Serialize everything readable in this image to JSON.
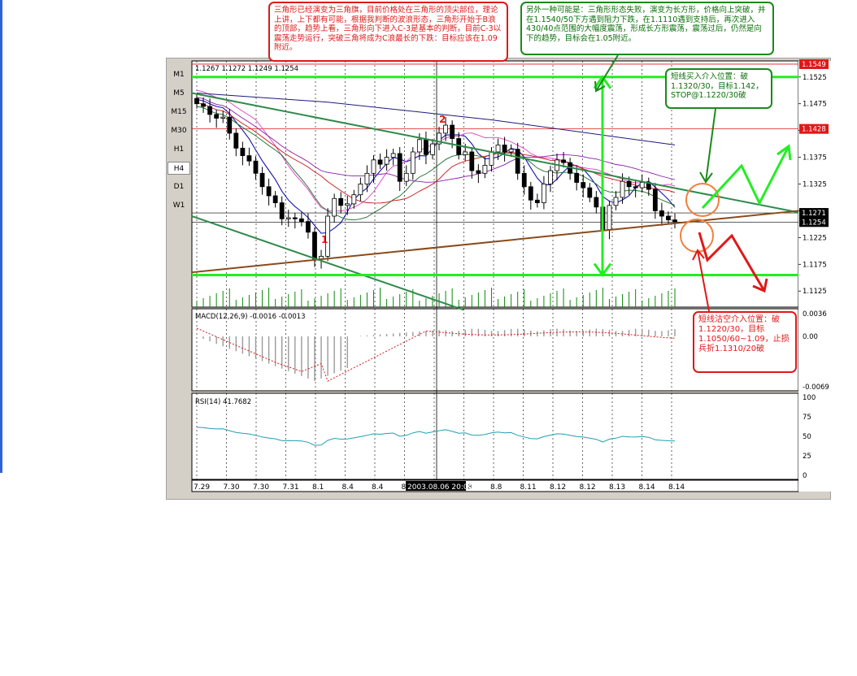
{
  "timeframes": [
    "M1",
    "M5",
    "M15",
    "M30",
    "H1",
    "H4",
    "D1",
    "W1"
  ],
  "active_timeframe": "H4",
  "main_panel": {
    "ohlc_label": "1.1267 1.1272 1.1249 1.1254",
    "price_ticks": [
      "1.1525",
      "1.1475",
      "1.1425",
      "1.1375",
      "1.1325",
      "1.1275",
      "1.1225",
      "1.1175",
      "1.1125"
    ],
    "price_tick_values": [
      1.1525,
      1.1475,
      1.1425,
      1.1375,
      1.1325,
      1.1275,
      1.1225,
      1.1175,
      1.1125
    ],
    "price_range": [
      1.1095,
      1.1555
    ],
    "price_tags": [
      {
        "label": "1.1549",
        "value": 1.1549,
        "color": "#e01818"
      },
      {
        "label": "1.1428",
        "value": 1.1428,
        "color": "#e01818"
      },
      {
        "label": "1.1271",
        "value": 1.1271,
        "color": "#000000"
      },
      {
        "label": "1.1254",
        "value": 1.1254,
        "color": "#000000"
      }
    ],
    "wave_labels": [
      {
        "text": "1",
        "index": 19,
        "price": 1.1215,
        "color": "#e01818"
      },
      {
        "text": "2",
        "index": 37,
        "price": 1.144,
        "color": "#e01818"
      }
    ]
  },
  "macd_panel": {
    "label": "MACD(12,26,9)  -0.0016 -0.0013",
    "ticks": [
      "0.0036",
      "0.00",
      "-0.0069"
    ]
  },
  "rsi_panel": {
    "label": "RSI(14)  41.7682",
    "ticks": [
      "100",
      "75",
      "50",
      "25",
      "0"
    ],
    "tick_values": [
      100,
      75,
      50,
      25,
      0
    ]
  },
  "date_labels": [
    "7.29",
    "7.30",
    "7.30",
    "7.31",
    "8.1",
    "8.4",
    "8.4",
    "8.5",
    "8",
    "8.8",
    "8.8",
    "8.11",
    "8.12",
    "8.12",
    "8.13",
    "8.14",
    "8.14"
  ],
  "date_highlight": "2003.08.06 20:00",
  "callouts": {
    "top_red": "三角形已经演变为三角旗，目前价格处在三角形的顶尖部位，理论上讲，上下都有可能，根据我判断的波浪形态，三角形开始于B浪的顶部，趋势上看，三角形向下进入C-3是基本的判断，目前C-3以震荡走势运行，突破三角将成为C浪最长的下跌：目标应该在1.09附近。",
    "top_green": "另外一种可能是：三角形形态失败，演变为长方形，价格向上突破，并在1.1540/50下方遇到阻力下跌，在1.1110遇到支持后，再次进入430/40点范围的大幅度震荡，形成长方形震荡，震荡过后，仍然是向下的趋势，目标会在1.05附近。",
    "buy_box": "短线买入介入位置：破1.1320/30，目标1.142，STOP@1.1220/30破",
    "sell_box": "短线沽空介入位置：破1.1220/30，目标1.1050/60~1.09，止损兵折1.1310/20破"
  },
  "chart_data": {
    "type": "candlestick",
    "title": "",
    "instrument_timeframe": "H4",
    "x_labels": [
      "7.29",
      "7.30",
      "7.30",
      "7.31",
      "8.1",
      "8.4",
      "8.4",
      "8.5",
      "8",
      "8.8",
      "8.8",
      "8.11",
      "8.12",
      "8.12",
      "8.13",
      "8.14",
      "8.14"
    ],
    "ylim": [
      1.1095,
      1.1555
    ],
    "close": [
      1.1475,
      1.147,
      1.1455,
      1.1448,
      1.145,
      1.142,
      1.1392,
      1.1378,
      1.1368,
      1.1345,
      1.132,
      1.1303,
      1.129,
      1.126,
      1.1262,
      1.126,
      1.1255,
      1.1235,
      1.1185,
      1.119,
      1.1265,
      1.1298,
      1.1285,
      1.1288,
      1.1305,
      1.1325,
      1.1345,
      1.137,
      1.1362,
      1.1375,
      1.1382,
      1.133,
      1.1345,
      1.1385,
      1.1408,
      1.138,
      1.14,
      1.142,
      1.1435,
      1.141,
      1.138,
      1.1385,
      1.135,
      1.1345,
      1.136,
      1.1385,
      1.1398,
      1.1385,
      1.139,
      1.1345,
      1.132,
      1.1295,
      1.129,
      1.1325,
      1.135,
      1.137,
      1.1365,
      1.1345,
      1.1328,
      1.1318,
      1.13,
      1.1282,
      1.124,
      1.1285,
      1.13,
      1.133,
      1.132,
      1.1318,
      1.1328,
      1.1315,
      1.1275,
      1.1265,
      1.1258,
      1.1254
    ],
    "macd_last": [
      -0.0016,
      -0.0013
    ],
    "rsi_last": 41.7682,
    "levels": [
      1.1525,
      1.1155
    ],
    "grid": true
  }
}
